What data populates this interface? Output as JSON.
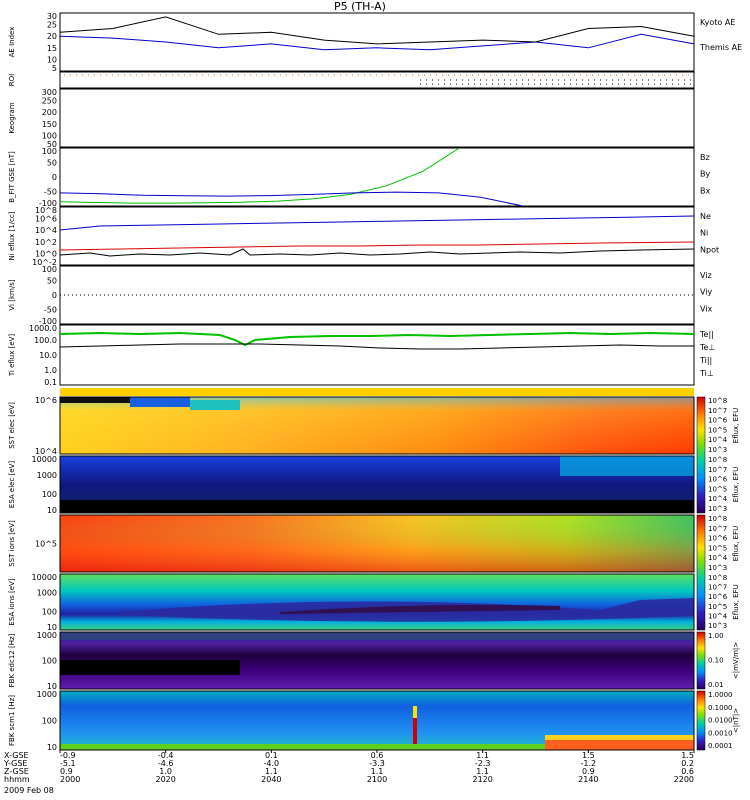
{
  "title": "P5 (TH-A)",
  "date_label": "2009 Feb 08",
  "colors": {
    "red": "#dd0000",
    "green": "#00c000",
    "blue": "#0000cc",
    "black": "#000000"
  },
  "chart_data": [
    {
      "type": "line",
      "panel": "ae",
      "ylabel": "AE Index",
      "ylim": [
        0,
        30
      ],
      "ticks": [
        "30",
        "25",
        "20",
        "15",
        "10",
        "5"
      ],
      "x": [
        "2000",
        "2010",
        "2020",
        "2030",
        "2040",
        "2050",
        "2100",
        "2110",
        "2120",
        "2130",
        "2140",
        "2150",
        "2200"
      ],
      "series": [
        {
          "name": "Kyoto AE",
          "color": "#0000cc",
          "values": [
            18,
            17,
            15,
            12,
            14,
            11,
            12,
            11,
            13,
            15,
            12,
            19,
            14
          ]
        },
        {
          "name": "Themis AE",
          "color": "#000000",
          "values": [
            20,
            22,
            28,
            19,
            20,
            16,
            14,
            15,
            16,
            15,
            22,
            23,
            18
          ]
        }
      ]
    },
    {
      "type": "line",
      "panel": "roi",
      "ylabel": "ROI"
    },
    {
      "type": "line",
      "panel": "keogram",
      "ylabel": "Keogram",
      "ylim": [
        0,
        300
      ],
      "ticks": [
        "300",
        "250",
        "200",
        "150",
        "100",
        "50"
      ]
    },
    {
      "type": "line",
      "panel": "bfield",
      "ylabel": "B_FIT GSE [nT]",
      "ylim": [
        -100,
        100
      ],
      "ticks": [
        "100",
        "50",
        "0",
        "-50",
        "-100"
      ],
      "series": [
        {
          "name": "Bz",
          "color": "#dd0000",
          "values": []
        },
        {
          "name": "By",
          "color": "#00c000",
          "values": [
            -85,
            -88,
            -90,
            -90,
            -89,
            -87,
            -83,
            -75,
            -60,
            -30,
            20,
            100
          ]
        },
        {
          "name": "Bx",
          "color": "#0000cc",
          "values": [
            -55,
            -58,
            -63,
            -65,
            -66,
            -64,
            -60,
            -55,
            -52,
            -55,
            -70,
            -100
          ]
        }
      ]
    },
    {
      "type": "line",
      "panel": "density",
      "ylabel": "Ni eflux [1/cc]",
      "ticks": [
        "10^8",
        "10^6",
        "10^4",
        "10^2",
        "10^0",
        "10^-2"
      ],
      "series": [
        {
          "name": "Ne",
          "color": "#dd0000"
        },
        {
          "name": "Ni",
          "color": "#000000"
        },
        {
          "name": "Npot",
          "color": "#0000cc"
        }
      ]
    },
    {
      "type": "line",
      "panel": "velocity",
      "ylabel": "Vi [km/s]",
      "ticks": [
        "100",
        "50",
        "0",
        "-50",
        "-100"
      ],
      "series": [
        {
          "name": "Viz",
          "color": "#dd0000"
        },
        {
          "name": "Viy",
          "color": "#00c000"
        },
        {
          "name": "Vix",
          "color": "#0000cc"
        }
      ]
    },
    {
      "type": "line",
      "panel": "temperature",
      "ylabel": "Ti eflux [eV]",
      "ticks": [
        "1000.0",
        "100.0",
        "10.0",
        "1.0",
        "0.1"
      ],
      "series": [
        {
          "name": "Te||",
          "color": "#000000"
        },
        {
          "name": "Te⊥",
          "color": "#dd0000"
        },
        {
          "name": "Ti||",
          "color": "#00c000"
        },
        {
          "name": "Ti⊥",
          "color": "#0000cc"
        }
      ]
    },
    {
      "type": "heatmap",
      "panel": "sst_e",
      "ylabel": "SST elec [eV]",
      "ticks": [
        "10^6",
        "10^4"
      ],
      "colorbar": "Eflux, EFU",
      "cticks": [
        "10^8",
        "10^7",
        "10^6",
        "10^5",
        "10^4",
        "10^3"
      ]
    },
    {
      "type": "heatmap",
      "panel": "esa_e",
      "ylabel": "ESA elec [eV]",
      "ticks": [
        "10000",
        "1000",
        "100",
        "10"
      ],
      "colorbar": "Eflux, EFU",
      "cticks": [
        "10^8",
        "10^7",
        "10^6",
        "10^5",
        "10^4",
        "10^3"
      ]
    },
    {
      "type": "heatmap",
      "panel": "sst_i",
      "ylabel": "SST ions [eV]",
      "ticks": [
        "10^5"
      ],
      "colorbar": "Eflux, EFU",
      "cticks": [
        "10^8",
        "10^7",
        "10^6",
        "10^5",
        "10^4",
        "10^3"
      ]
    },
    {
      "type": "heatmap",
      "panel": "esa_i",
      "ylabel": "ESA ions [eV]",
      "ticks": [
        "10000",
        "1000",
        "100",
        "10"
      ],
      "colorbar": "Eflux, EFU",
      "cticks": [
        "10^8",
        "10^7",
        "10^6",
        "10^5",
        "10^4",
        "10^3"
      ]
    },
    {
      "type": "heatmap",
      "panel": "fbk_e",
      "ylabel": "FBK edc12 [Hz]",
      "ticks": [
        "1000",
        "100",
        "10"
      ],
      "colorbar": "<|mV/m|>",
      "cticks": [
        "1.00",
        "0.10",
        "0.01"
      ]
    },
    {
      "type": "heatmap",
      "panel": "fbk_b",
      "ylabel": "FBK scm1 [Hz]",
      "ticks": [
        "1000",
        "100",
        "10"
      ],
      "colorbar": "<|nT|>",
      "cticks": [
        "1.0000",
        "0.1000",
        "0.0100",
        "0.0010",
        "0.0001"
      ]
    }
  ],
  "xaxis": {
    "row_labels": [
      "X-GSE",
      "Y-GSE",
      "Z-GSE",
      "hhmm",
      "2009 Feb 08"
    ],
    "columns": [
      {
        "x": "-0.9",
        "y": "-5.1",
        "z": "0.9",
        "t": "2000"
      },
      {
        "x": "-0.4",
        "y": "-4.6",
        "z": "1.0",
        "t": "2020"
      },
      {
        "x": "0.1",
        "y": "-4.0",
        "z": "1.1",
        "t": "2040"
      },
      {
        "x": "0.6",
        "y": "-3.3",
        "z": "1.1",
        "t": "2100"
      },
      {
        "x": "1.1",
        "y": "-2.3",
        "z": "1.1",
        "t": "2120"
      },
      {
        "x": "1.5",
        "y": "-1.2",
        "z": "0.9",
        "t": "2140"
      },
      {
        "x": "1.5",
        "y": "0.2",
        "z": "0.6",
        "t": "2200"
      }
    ]
  }
}
